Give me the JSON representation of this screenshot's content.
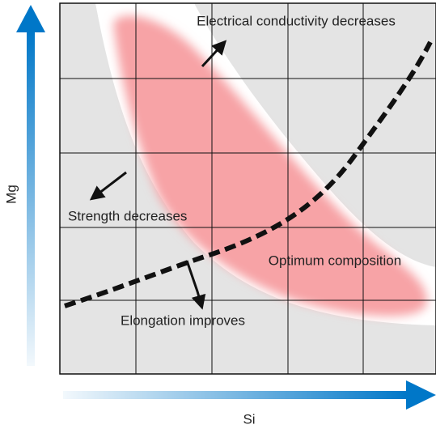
{
  "axes": {
    "y_label": "Mg",
    "x_label": "Si"
  },
  "annotations": {
    "conductivity": "Electrical conductivity decreases",
    "strength": "Strength decreases",
    "optimum": "Optimum composition",
    "elongation": "Elongation improves"
  }
}
